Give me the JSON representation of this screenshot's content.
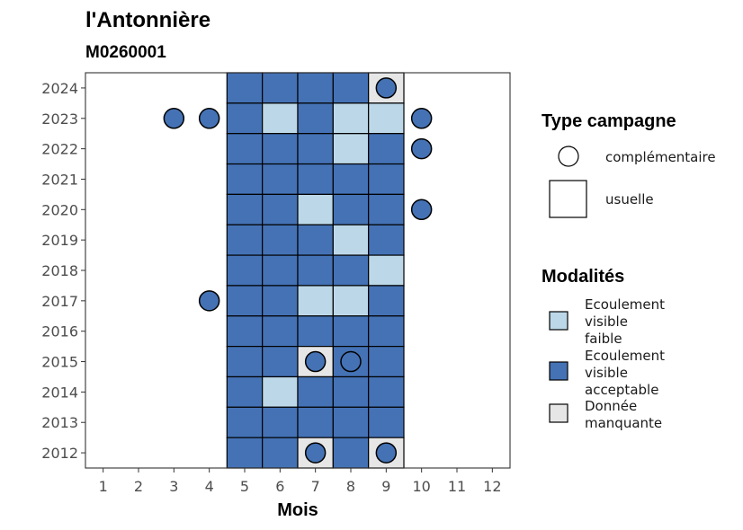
{
  "title": "l'Antonnière",
  "subtitle": "M0260001",
  "colors": {
    "Ecoulement visible faible": "#bcd8e8",
    "Ecoulement visible acceptable": "#4472b5",
    "Donnée manquante": "#e6e6e6"
  },
  "chart_data": {
    "type": "heatmap",
    "xlabel": "Mois",
    "ylabel": "",
    "x_ticks": [
      "1",
      "2",
      "3",
      "4",
      "5",
      "6",
      "7",
      "8",
      "9",
      "10",
      "11",
      "12"
    ],
    "y_ticks": [
      "2012",
      "2013",
      "2014",
      "2015",
      "2016",
      "2017",
      "2018",
      "2019",
      "2020",
      "2021",
      "2022",
      "2023",
      "2024"
    ],
    "xlim": [
      0.5,
      12.5
    ],
    "ylim": [
      2011.5,
      2024.5
    ],
    "cells": [
      {
        "year": 2024,
        "month": 5,
        "modalite": "Ecoulement visible acceptable"
      },
      {
        "year": 2024,
        "month": 6,
        "modalite": "Ecoulement visible acceptable"
      },
      {
        "year": 2024,
        "month": 7,
        "modalite": "Ecoulement visible acceptable"
      },
      {
        "year": 2024,
        "month": 8,
        "modalite": "Ecoulement visible acceptable"
      },
      {
        "year": 2024,
        "month": 9,
        "modalite": "Donnée manquante"
      },
      {
        "year": 2023,
        "month": 5,
        "modalite": "Ecoulement visible acceptable"
      },
      {
        "year": 2023,
        "month": 6,
        "modalite": "Ecoulement visible faible"
      },
      {
        "year": 2023,
        "month": 7,
        "modalite": "Ecoulement visible acceptable"
      },
      {
        "year": 2023,
        "month": 8,
        "modalite": "Ecoulement visible faible"
      },
      {
        "year": 2023,
        "month": 9,
        "modalite": "Ecoulement visible faible"
      },
      {
        "year": 2022,
        "month": 5,
        "modalite": "Ecoulement visible acceptable"
      },
      {
        "year": 2022,
        "month": 6,
        "modalite": "Ecoulement visible acceptable"
      },
      {
        "year": 2022,
        "month": 7,
        "modalite": "Ecoulement visible acceptable"
      },
      {
        "year": 2022,
        "month": 8,
        "modalite": "Ecoulement visible faible"
      },
      {
        "year": 2022,
        "month": 9,
        "modalite": "Ecoulement visible acceptable"
      },
      {
        "year": 2021,
        "month": 5,
        "modalite": "Ecoulement visible acceptable"
      },
      {
        "year": 2021,
        "month": 6,
        "modalite": "Ecoulement visible acceptable"
      },
      {
        "year": 2021,
        "month": 7,
        "modalite": "Ecoulement visible acceptable"
      },
      {
        "year": 2021,
        "month": 8,
        "modalite": "Ecoulement visible acceptable"
      },
      {
        "year": 2021,
        "month": 9,
        "modalite": "Ecoulement visible acceptable"
      },
      {
        "year": 2020,
        "month": 5,
        "modalite": "Ecoulement visible acceptable"
      },
      {
        "year": 2020,
        "month": 6,
        "modalite": "Ecoulement visible acceptable"
      },
      {
        "year": 2020,
        "month": 7,
        "modalite": "Ecoulement visible faible"
      },
      {
        "year": 2020,
        "month": 8,
        "modalite": "Ecoulement visible acceptable"
      },
      {
        "year": 2020,
        "month": 9,
        "modalite": "Ecoulement visible acceptable"
      },
      {
        "year": 2019,
        "month": 5,
        "modalite": "Ecoulement visible acceptable"
      },
      {
        "year": 2019,
        "month": 6,
        "modalite": "Ecoulement visible acceptable"
      },
      {
        "year": 2019,
        "month": 7,
        "modalite": "Ecoulement visible acceptable"
      },
      {
        "year": 2019,
        "month": 8,
        "modalite": "Ecoulement visible faible"
      },
      {
        "year": 2019,
        "month": 9,
        "modalite": "Ecoulement visible acceptable"
      },
      {
        "year": 2018,
        "month": 5,
        "modalite": "Ecoulement visible acceptable"
      },
      {
        "year": 2018,
        "month": 6,
        "modalite": "Ecoulement visible acceptable"
      },
      {
        "year": 2018,
        "month": 7,
        "modalite": "Ecoulement visible acceptable"
      },
      {
        "year": 2018,
        "month": 8,
        "modalite": "Ecoulement visible acceptable"
      },
      {
        "year": 2018,
        "month": 9,
        "modalite": "Ecoulement visible faible"
      },
      {
        "year": 2017,
        "month": 5,
        "modalite": "Ecoulement visible acceptable"
      },
      {
        "year": 2017,
        "month": 6,
        "modalite": "Ecoulement visible acceptable"
      },
      {
        "year": 2017,
        "month": 7,
        "modalite": "Ecoulement visible faible"
      },
      {
        "year": 2017,
        "month": 8,
        "modalite": "Ecoulement visible faible"
      },
      {
        "year": 2017,
        "month": 9,
        "modalite": "Ecoulement visible acceptable"
      },
      {
        "year": 2016,
        "month": 5,
        "modalite": "Ecoulement visible acceptable"
      },
      {
        "year": 2016,
        "month": 6,
        "modalite": "Ecoulement visible acceptable"
      },
      {
        "year": 2016,
        "month": 7,
        "modalite": "Ecoulement visible acceptable"
      },
      {
        "year": 2016,
        "month": 8,
        "modalite": "Ecoulement visible acceptable"
      },
      {
        "year": 2016,
        "month": 9,
        "modalite": "Ecoulement visible acceptable"
      },
      {
        "year": 2015,
        "month": 5,
        "modalite": "Ecoulement visible acceptable"
      },
      {
        "year": 2015,
        "month": 6,
        "modalite": "Ecoulement visible acceptable"
      },
      {
        "year": 2015,
        "month": 7,
        "modalite": "Donnée manquante"
      },
      {
        "year": 2015,
        "month": 8,
        "modalite": "Ecoulement visible acceptable"
      },
      {
        "year": 2015,
        "month": 9,
        "modalite": "Ecoulement visible acceptable"
      },
      {
        "year": 2014,
        "month": 5,
        "modalite": "Ecoulement visible acceptable"
      },
      {
        "year": 2014,
        "month": 6,
        "modalite": "Ecoulement visible faible"
      },
      {
        "year": 2014,
        "month": 7,
        "modalite": "Ecoulement visible acceptable"
      },
      {
        "year": 2014,
        "month": 8,
        "modalite": "Ecoulement visible acceptable"
      },
      {
        "year": 2014,
        "month": 9,
        "modalite": "Ecoulement visible acceptable"
      },
      {
        "year": 2013,
        "month": 5,
        "modalite": "Ecoulement visible acceptable"
      },
      {
        "year": 2013,
        "month": 6,
        "modalite": "Ecoulement visible acceptable"
      },
      {
        "year": 2013,
        "month": 7,
        "modalite": "Ecoulement visible acceptable"
      },
      {
        "year": 2013,
        "month": 8,
        "modalite": "Ecoulement visible acceptable"
      },
      {
        "year": 2013,
        "month": 9,
        "modalite": "Ecoulement visible acceptable"
      },
      {
        "year": 2012,
        "month": 5,
        "modalite": "Ecoulement visible acceptable"
      },
      {
        "year": 2012,
        "month": 6,
        "modalite": "Ecoulement visible acceptable"
      },
      {
        "year": 2012,
        "month": 7,
        "modalite": "Donnée manquante"
      },
      {
        "year": 2012,
        "month": 8,
        "modalite": "Ecoulement visible acceptable"
      },
      {
        "year": 2012,
        "month": 9,
        "modalite": "Donnée manquante"
      }
    ],
    "points": [
      {
        "year": 2024,
        "month": 9,
        "modalite": "Ecoulement visible acceptable"
      },
      {
        "year": 2023,
        "month": 3,
        "modalite": "Ecoulement visible acceptable"
      },
      {
        "year": 2023,
        "month": 4,
        "modalite": "Ecoulement visible acceptable"
      },
      {
        "year": 2023,
        "month": 10,
        "modalite": "Ecoulement visible acceptable"
      },
      {
        "year": 2022,
        "month": 10,
        "modalite": "Ecoulement visible acceptable"
      },
      {
        "year": 2020,
        "month": 10,
        "modalite": "Ecoulement visible acceptable"
      },
      {
        "year": 2017,
        "month": 4,
        "modalite": "Ecoulement visible acceptable"
      },
      {
        "year": 2015,
        "month": 7,
        "modalite": "Ecoulement visible acceptable"
      },
      {
        "year": 2015,
        "month": 8,
        "modalite": "Ecoulement visible acceptable"
      },
      {
        "year": 2012,
        "month": 7,
        "modalite": "Ecoulement visible acceptable"
      },
      {
        "year": 2012,
        "month": 9,
        "modalite": "Ecoulement visible acceptable"
      }
    ],
    "legend": {
      "placement": "right",
      "shape_title": "Type campagne",
      "shapes": [
        {
          "shape": "circle",
          "lines": [
            "complémentaire"
          ]
        },
        {
          "shape": "square",
          "lines": [
            "usuelle"
          ]
        }
      ],
      "fill_title": "Modalités",
      "fills": [
        {
          "key": "Ecoulement visible faible",
          "lines": [
            "Ecoulement",
            "visible",
            "faible"
          ]
        },
        {
          "key": "Ecoulement visible acceptable",
          "lines": [
            "Ecoulement",
            "visible",
            "acceptable"
          ]
        },
        {
          "key": "Donnée manquante",
          "lines": [
            "Donnée",
            "manquante"
          ]
        }
      ]
    }
  }
}
